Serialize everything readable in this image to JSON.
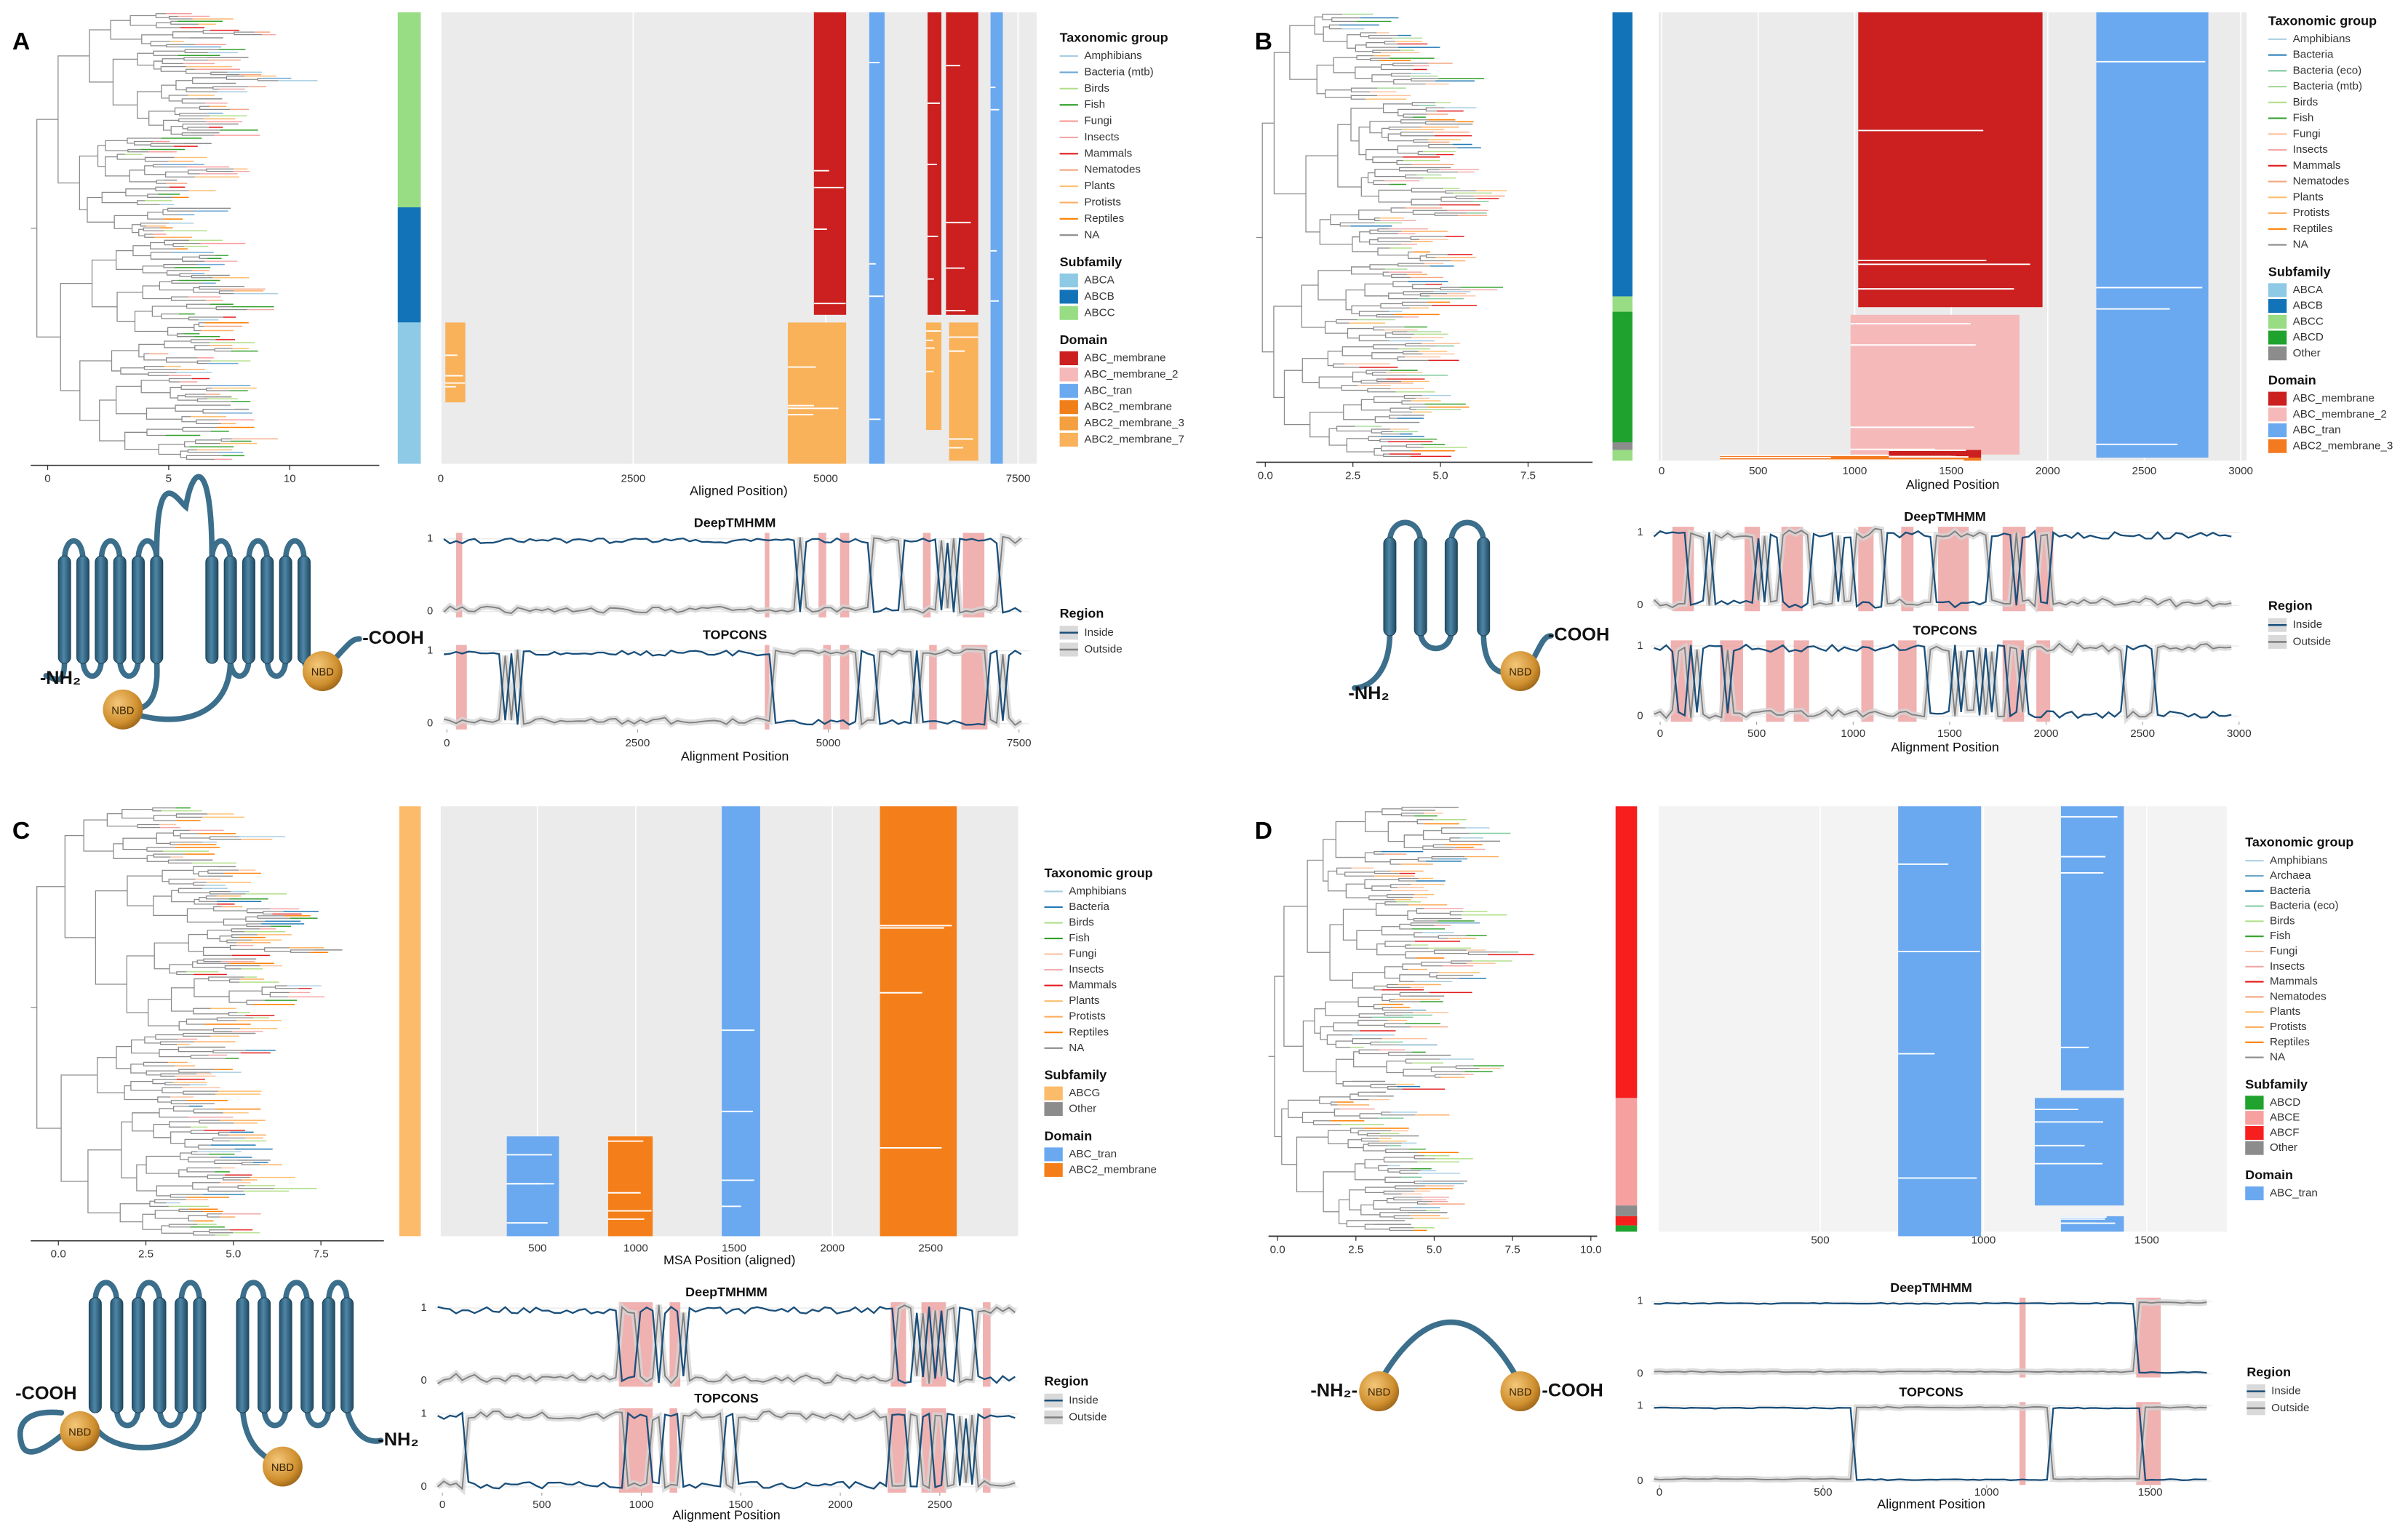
{
  "figure": {
    "panels": [
      {
        "label": "A",
        "tree_axis": {
          "xlim": [
            -0.7,
            13.7
          ],
          "xticks": [
            0,
            5,
            10
          ]
        },
        "alignment": {
          "xlabel": "Aligned Position)",
          "xlim": [
            0,
            7740
          ],
          "xticks": [
            0,
            2500,
            5000,
            7500
          ]
        },
        "legend": [
          {
            "title": "Taxonomic group",
            "items": [
              {
                "name": "Amphibians",
                "color": "#a6cee3"
              },
              {
                "name": "Bacteria (mtb)",
                "color": "#6fa8d6"
              },
              {
                "name": "Birds",
                "color": "#b2df8a"
              },
              {
                "name": "Fish",
                "color": "#33a02c"
              },
              {
                "name": "Fungi",
                "color": "#fb9a99"
              },
              {
                "name": "Insects",
                "color": "#f4a6a6"
              },
              {
                "name": "Mammals",
                "color": "#e31a1c"
              },
              {
                "name": "Nematodes",
                "color": "#f4a582"
              },
              {
                "name": "Plants",
                "color": "#fdbf6f"
              },
              {
                "name": "Protists",
                "color": "#fdae61"
              },
              {
                "name": "Reptiles",
                "color": "#ff7f00"
              },
              {
                "name": "NA",
                "color": "#8c8c8c"
              }
            ]
          },
          {
            "title": "Subfamily",
            "items": [
              {
                "name": "ABCA",
                "color": "#8ecae6"
              },
              {
                "name": "ABCB",
                "color": "#1273b8"
              },
              {
                "name": "ABCC",
                "color": "#98dc84"
              }
            ]
          },
          {
            "title": "Domain",
            "items": [
              {
                "name": "ABC_membrane",
                "color": "#cc1f1f"
              },
              {
                "name": "ABC_membrane_2",
                "color": "#f6b9b9"
              },
              {
                "name": "ABC_tran",
                "color": "#6aa9f0"
              },
              {
                "name": "ABC2_membrane",
                "color": "#f07f1a"
              },
              {
                "name": "ABC2_membrane_3",
                "color": "#f4a040"
              },
              {
                "name": "ABC2_membrane_7",
                "color": "#f9b25a"
              }
            ]
          }
        ],
        "diagram": {
          "n_terminus": "-NH₂",
          "c_terminus": "-COOH",
          "nbd": "NBD"
        },
        "topology": {
          "plots": [
            {
              "title": "DeepTMHMM",
              "yticks": [
                0,
                1
              ]
            },
            {
              "title": "TOPCONS",
              "yticks": [
                0,
                1
              ]
            }
          ],
          "ylim": [
            -0.08,
            1.08
          ],
          "xlabel": "Alignment Position",
          "xlim": [
            -80,
            7630
          ],
          "xticks": [
            0,
            2500,
            5000,
            7500
          ],
          "region_title": "Region",
          "regions": [
            {
              "name": "Inside",
              "color": "#1a4f7a"
            },
            {
              "name": "Outside",
              "color": "#808080"
            }
          ]
        }
      },
      {
        "label": "B",
        "tree_axis": {
          "xlim": [
            -0.26,
            9.34
          ],
          "xticks": [
            {
              "value": 0,
              "label": "0.0"
            },
            2.5,
            {
              "value": 5,
              "label": "5.0"
            },
            7.5
          ]
        },
        "alignment": {
          "xlabel": "Aligned Position",
          "xlim": [
            -16,
            3031
          ],
          "xticks": [
            0,
            500,
            1000,
            1500,
            2000,
            2500,
            3000
          ]
        },
        "legend": [
          {
            "title": "Taxonomic group",
            "items": [
              {
                "name": "Amphibians",
                "color": "#a6cee3"
              },
              {
                "name": "Bacteria",
                "color": "#1f78b4"
              },
              {
                "name": "Bacteria (eco)",
                "color": "#7fc9a0"
              },
              {
                "name": "Bacteria (mtb)",
                "color": "#a8d99b"
              },
              {
                "name": "Birds",
                "color": "#b2df8a"
              },
              {
                "name": "Fish",
                "color": "#33a02c"
              },
              {
                "name": "Fungi",
                "color": "#fbc3a0"
              },
              {
                "name": "Insects",
                "color": "#f4a6a6"
              },
              {
                "name": "Mammals",
                "color": "#e31a1c"
              },
              {
                "name": "Nematodes",
                "color": "#f4a582"
              },
              {
                "name": "Plants",
                "color": "#fdbf6f"
              },
              {
                "name": "Protists",
                "color": "#fdae61"
              },
              {
                "name": "Reptiles",
                "color": "#ff7f00"
              },
              {
                "name": "NA",
                "color": "#8c8c8c"
              }
            ]
          },
          {
            "title": "Subfamily",
            "items": [
              {
                "name": "ABCA",
                "color": "#8ecae6"
              },
              {
                "name": "ABCB",
                "color": "#1273b8"
              },
              {
                "name": "ABCC",
                "color": "#98dc84"
              },
              {
                "name": "ABCD",
                "color": "#1fa22e"
              },
              {
                "name": "Other",
                "color": "#8c8c8c"
              }
            ]
          },
          {
            "title": "Domain",
            "items": [
              {
                "name": "ABC_membrane",
                "color": "#cc1f1f"
              },
              {
                "name": "ABC_membrane_2",
                "color": "#f6b9b9"
              },
              {
                "name": "ABC_tran",
                "color": "#6aa9f0"
              },
              {
                "name": "ABC2_membrane_3",
                "color": "#f47a20"
              }
            ]
          }
        ],
        "diagram": {
          "n_terminus": "-NH₂",
          "c_terminus": "-COOH",
          "nbd": "NBD"
        },
        "topology": {
          "plots": [
            {
              "title": "DeepTMHMM",
              "yticks": [
                0,
                1
              ]
            },
            {
              "title": "TOPCONS",
              "yticks": [
                0,
                1
              ]
            }
          ],
          "ylim": [
            -0.08,
            1.08
          ],
          "xlabel": "Alignment Position",
          "xlim": [
            -48,
            3000
          ],
          "xticks": [
            0,
            500,
            1000,
            1500,
            2000,
            2500,
            3000
          ],
          "region_title": "Region",
          "regions": [
            {
              "name": "Inside",
              "color": "#1a4f7a"
            },
            {
              "name": "Outside",
              "color": "#808080"
            }
          ]
        }
      },
      {
        "label": "C",
        "tree_axis": {
          "xlim": [
            -0.79,
            9.3
          ],
          "xticks": [
            {
              "value": 0,
              "label": "0.0"
            },
            2.5,
            {
              "value": 5,
              "label": "5.0"
            },
            7.5
          ]
        },
        "alignment": {
          "xlabel": "MSA Position (aligned)",
          "xlim": [
            8,
            2945
          ],
          "xticks": [
            500,
            1000,
            1500,
            2000,
            2500
          ]
        },
        "legend": [
          {
            "title": "Taxonomic group",
            "items": [
              {
                "name": "Amphibians",
                "color": "#a6cee3"
              },
              {
                "name": "Bacteria",
                "color": "#1f78b4"
              },
              {
                "name": "Birds",
                "color": "#b2df8a"
              },
              {
                "name": "Fish",
                "color": "#33a02c"
              },
              {
                "name": "Fungi",
                "color": "#fbc3a0"
              },
              {
                "name": "Insects",
                "color": "#f4a6a6"
              },
              {
                "name": "Mammals",
                "color": "#e31a1c"
              },
              {
                "name": "Plants",
                "color": "#fdbf6f"
              },
              {
                "name": "Protists",
                "color": "#fdae61"
              },
              {
                "name": "Reptiles",
                "color": "#ff7f00"
              },
              {
                "name": "NA",
                "color": "#8c8c8c"
              }
            ]
          },
          {
            "title": "Subfamily",
            "items": [
              {
                "name": "ABCG",
                "color": "#fbbb6b"
              },
              {
                "name": "Other",
                "color": "#8c8c8c"
              }
            ]
          },
          {
            "title": "Domain",
            "items": [
              {
                "name": "ABC_tran",
                "color": "#6aa9f0"
              },
              {
                "name": "ABC2_membrane",
                "color": "#f47f1a"
              }
            ]
          }
        ],
        "diagram": {
          "n_terminus": "-NH₂",
          "c_terminus": "-COOH",
          "nbd": "NBD"
        },
        "topology": {
          "plots": [
            {
              "title": "DeepTMHMM",
              "yticks": [
                0,
                1
              ]
            },
            {
              "title": "TOPCONS",
              "yticks": [
                0,
                1
              ]
            }
          ],
          "ylim": [
            -0.08,
            1.08
          ],
          "xlabel": "Alignment Position",
          "xlim": [
            -39,
            2894
          ],
          "xticks": [
            0,
            500,
            1000,
            1500,
            2000,
            2500
          ],
          "region_title": "Region",
          "regions": [
            {
              "name": "Inside",
              "color": "#1a4f7a"
            },
            {
              "name": "Outside",
              "color": "#808080"
            }
          ]
        }
      },
      {
        "label": "D",
        "tree_axis": {
          "xlim": [
            -0.29,
            10.2
          ],
          "xticks": [
            {
              "value": 0,
              "label": "0.0"
            },
            2.5,
            {
              "value": 5,
              "label": "5.0"
            },
            7.5,
            {
              "value": 10,
              "label": "10.0"
            }
          ]
        },
        "alignment": {
          "xlim": [
            5,
            1745
          ],
          "xticks": [
            500,
            1000,
            1500
          ]
        },
        "legend": [
          {
            "title": "Taxonomic group",
            "items": [
              {
                "name": "Amphibians",
                "color": "#a6cee3"
              },
              {
                "name": "Archaea",
                "color": "#6fa8c8"
              },
              {
                "name": "Bacteria",
                "color": "#1f78b4"
              },
              {
                "name": "Bacteria (eco)",
                "color": "#7fc9a0"
              },
              {
                "name": "Birds",
                "color": "#b2df8a"
              },
              {
                "name": "Fish",
                "color": "#33a02c"
              },
              {
                "name": "Fungi",
                "color": "#fbc3a0"
              },
              {
                "name": "Insects",
                "color": "#f4a6a6"
              },
              {
                "name": "Mammals",
                "color": "#e31a1c"
              },
              {
                "name": "Nematodes",
                "color": "#f4a582"
              },
              {
                "name": "Plants",
                "color": "#fdbf6f"
              },
              {
                "name": "Protists",
                "color": "#fdae61"
              },
              {
                "name": "Reptiles",
                "color": "#ff7f00"
              },
              {
                "name": "NA",
                "color": "#8c8c8c"
              }
            ]
          },
          {
            "title": "Subfamily",
            "items": [
              {
                "name": "ABCD",
                "color": "#1fa22e"
              },
              {
                "name": "ABCE",
                "color": "#f6a0a0"
              },
              {
                "name": "ABCF",
                "color": "#f71e1e"
              },
              {
                "name": "Other",
                "color": "#8c8c8c"
              }
            ]
          },
          {
            "title": "Domain",
            "items": [
              {
                "name": "ABC_tran",
                "color": "#6aa9f0"
              }
            ]
          }
        ],
        "diagram": {
          "n_terminus": "-NH₂-",
          "c_terminus": "-COOH",
          "nbd": "NBD"
        },
        "topology": {
          "plots": [
            {
              "title": "DeepTMHMM",
              "yticks": [
                0,
                1
              ]
            },
            {
              "title": "TOPCONS",
              "yticks": [
                0,
                1
              ]
            }
          ],
          "ylim": [
            -0.05,
            1.05
          ],
          "xlabel": "Alignment Position",
          "xlim": [
            -26,
            1687
          ],
          "xticks": [
            0,
            500,
            1000,
            1500
          ],
          "region_title": "Region",
          "regions": [
            {
              "name": "Inside",
              "color": "#1a4f7a"
            },
            {
              "name": "Outside",
              "color": "#808080"
            }
          ]
        }
      }
    ]
  }
}
